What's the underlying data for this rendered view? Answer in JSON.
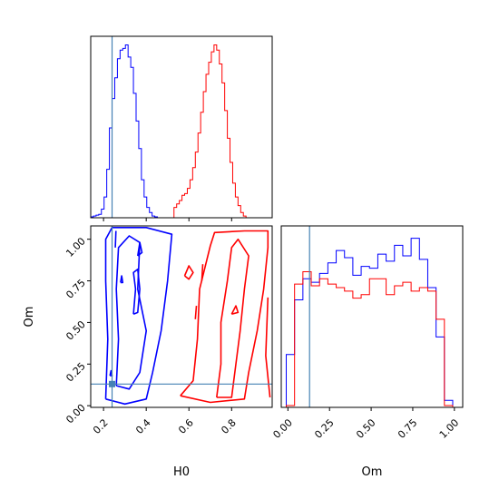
{
  "chart_data": {
    "type": "corner",
    "colors": {
      "series_a": "#0000ff",
      "series_b": "#ff0000",
      "truth": "#4682b4"
    },
    "truth": {
      "H0": 0.24,
      "Om": 0.13
    },
    "panels": [
      {
        "id": "hist-H0",
        "type": "histogram",
        "param": "H0",
        "xlim": [
          0.14,
          0.99
        ],
        "xticks": [
          0.2,
          0.4,
          0.6,
          0.8
        ],
        "show_tick_labels": false,
        "series": [
          {
            "color": "#0000ff",
            "bins_start": 0.14,
            "bin_width": 0.0125,
            "counts": [
              0.05,
              0.1,
              0.15,
              0.2,
              0.5,
              1.2,
              2.8,
              5.2,
              6.9,
              8.1,
              9.2,
              9.7,
              9.8,
              10.0,
              9.3,
              8.7,
              7.2,
              5.6,
              4.0,
              2.2,
              1.2,
              0.6,
              0.3,
              0.1,
              0.05
            ]
          },
          {
            "color": "#ff0000",
            "bins_start": 0.53,
            "bin_width": 0.0125,
            "counts": [
              0.6,
              0.8,
              1.0,
              1.3,
              1.4,
              1.7,
              2.2,
              2.9,
              3.8,
              4.9,
              6.1,
              7.3,
              8.3,
              9.0,
              9.6,
              10.0,
              9.7,
              8.9,
              7.8,
              6.2,
              4.6,
              3.2,
              2.0,
              1.2,
              0.7,
              0.3,
              0.1
            ]
          }
        ],
        "ymax": 10.5
      },
      {
        "id": "contour-H0-Om",
        "type": "contour",
        "xlabel": "H0",
        "ylabel": "Om",
        "xlim": [
          0.14,
          0.99
        ],
        "ylim": [
          -0.01,
          1.08
        ],
        "xticks": [
          0.2,
          0.4,
          0.6,
          0.8
        ],
        "xtick_labels": [
          "0.2",
          "0.4",
          "0.6",
          "0.8"
        ],
        "yticks": [
          0.0,
          0.25,
          0.5,
          0.75,
          1.0
        ],
        "ytick_labels": [
          "0.00",
          "0.25",
          "0.50",
          "0.75",
          "1.00"
        ],
        "contours": [
          {
            "color": "#0000ff",
            "points": [
              [
                0.21,
                0.04
              ],
              [
                0.22,
                0.4
              ],
              [
                0.21,
                0.75
              ],
              [
                0.21,
                1.0
              ],
              [
                0.24,
                1.07
              ],
              [
                0.4,
                1.07
              ],
              [
                0.52,
                1.03
              ],
              [
                0.5,
                0.75
              ],
              [
                0.47,
                0.45
              ],
              [
                0.43,
                0.2
              ],
              [
                0.4,
                0.04
              ],
              [
                0.3,
                0.01
              ],
              [
                0.21,
                0.04
              ]
            ]
          },
          {
            "color": "#0000ff",
            "points": [
              [
                0.26,
                0.12
              ],
              [
                0.27,
                0.4
              ],
              [
                0.26,
                0.7
              ],
              [
                0.27,
                0.95
              ],
              [
                0.32,
                1.02
              ],
              [
                0.37,
                0.98
              ],
              [
                0.36,
                0.7
              ],
              [
                0.4,
                0.45
              ],
              [
                0.37,
                0.2
              ],
              [
                0.32,
                0.1
              ],
              [
                0.26,
                0.12
              ]
            ]
          },
          {
            "color": "#0000ff",
            "points": [
              [
                0.34,
                0.55
              ],
              [
                0.35,
                0.7
              ],
              [
                0.34,
                0.8
              ],
              [
                0.36,
                0.82
              ],
              [
                0.37,
                0.7
              ],
              [
                0.36,
                0.56
              ],
              [
                0.34,
                0.55
              ]
            ]
          },
          {
            "color": "#0000ff",
            "points": [
              [
                0.36,
                0.9
              ],
              [
                0.37,
                0.98
              ],
              [
                0.38,
                0.92
              ],
              [
                0.36,
                0.9
              ]
            ]
          },
          {
            "color": "#0000ff",
            "points": [
              [
                0.28,
                0.74
              ],
              [
                0.285,
                0.78
              ],
              [
                0.29,
                0.74
              ],
              [
                0.28,
                0.74
              ]
            ]
          },
          {
            "color": "#0000ff",
            "points": [
              [
                0.23,
                0.18
              ],
              [
                0.235,
                0.21
              ],
              [
                0.24,
                0.18
              ],
              [
                0.23,
                0.18
              ]
            ]
          },
          {
            "color": "#0000ff",
            "points": [
              [
                0.255,
                0.95
              ],
              [
                0.258,
                1.05
              ]
            ]
          },
          {
            "color": "#ff0000",
            "points": [
              [
                0.56,
                0.06
              ],
              [
                0.62,
                0.15
              ],
              [
                0.64,
                0.4
              ],
              [
                0.65,
                0.7
              ],
              [
                0.7,
                0.96
              ],
              [
                0.72,
                1.04
              ],
              [
                0.86,
                1.05
              ],
              [
                0.97,
                1.05
              ],
              [
                0.97,
                0.95
              ],
              [
                0.95,
                0.7
              ],
              [
                0.92,
                0.45
              ],
              [
                0.88,
                0.2
              ],
              [
                0.86,
                0.04
              ],
              [
                0.7,
                0.02
              ],
              [
                0.56,
                0.06
              ]
            ]
          },
          {
            "color": "#ff0000",
            "points": [
              [
                0.73,
                0.05
              ],
              [
                0.75,
                0.25
              ],
              [
                0.75,
                0.5
              ],
              [
                0.78,
                0.75
              ],
              [
                0.8,
                0.95
              ],
              [
                0.83,
                1.0
              ],
              [
                0.88,
                0.9
              ],
              [
                0.86,
                0.7
              ],
              [
                0.84,
                0.45
              ],
              [
                0.82,
                0.25
              ],
              [
                0.8,
                0.05
              ],
              [
                0.73,
                0.05
              ]
            ]
          },
          {
            "color": "#ff0000",
            "points": [
              [
                0.58,
                0.78
              ],
              [
                0.6,
                0.84
              ],
              [
                0.62,
                0.8
              ],
              [
                0.6,
                0.76
              ],
              [
                0.58,
                0.78
              ]
            ]
          },
          {
            "color": "#ff0000",
            "points": [
              [
                0.63,
                0.52
              ],
              [
                0.635,
                0.6
              ]
            ]
          },
          {
            "color": "#ff0000",
            "points": [
              [
                0.66,
                0.75
              ],
              [
                0.665,
                0.85
              ]
            ]
          },
          {
            "color": "#ff0000",
            "points": [
              [
                0.8,
                0.55
              ],
              [
                0.82,
                0.6
              ],
              [
                0.83,
                0.56
              ],
              [
                0.8,
                0.55
              ]
            ]
          },
          {
            "color": "#ff0000",
            "points": [
              [
                0.98,
                0.05
              ],
              [
                0.96,
                0.3
              ],
              [
                0.97,
                0.65
              ]
            ]
          }
        ]
      },
      {
        "id": "hist-Om",
        "type": "histogram",
        "xlabel": "Om",
        "param": "Om",
        "xlim": [
          -0.04,
          1.05
        ],
        "xticks": [
          0.0,
          0.25,
          0.5,
          0.75,
          1.0
        ],
        "xtick_labels": [
          "0.00",
          "0.25",
          "0.50",
          "0.75",
          "1.00"
        ],
        "show_tick_labels": true,
        "series": [
          {
            "color": "#0000ff",
            "bins_start": -0.01,
            "bin_width": 0.05,
            "counts": [
              3.0,
              6.1,
              7.3,
              7.1,
              7.6,
              8.2,
              8.9,
              8.5,
              7.5,
              8.0,
              7.9,
              8.7,
              8.3,
              9.2,
              8.6,
              9.6,
              8.4,
              6.8,
              4.0,
              0.4
            ]
          },
          {
            "color": "#ff0000",
            "bins_start": -0.01,
            "bin_width": 0.05,
            "counts": [
              0.1,
              7.0,
              7.7,
              6.9,
              7.3,
              7.0,
              6.8,
              6.6,
              6.2,
              6.4,
              7.3,
              7.3,
              6.4,
              6.9,
              7.1,
              6.6,
              6.8,
              6.6,
              5.0,
              0.1
            ]
          }
        ],
        "ymax": 10.3
      }
    ]
  }
}
